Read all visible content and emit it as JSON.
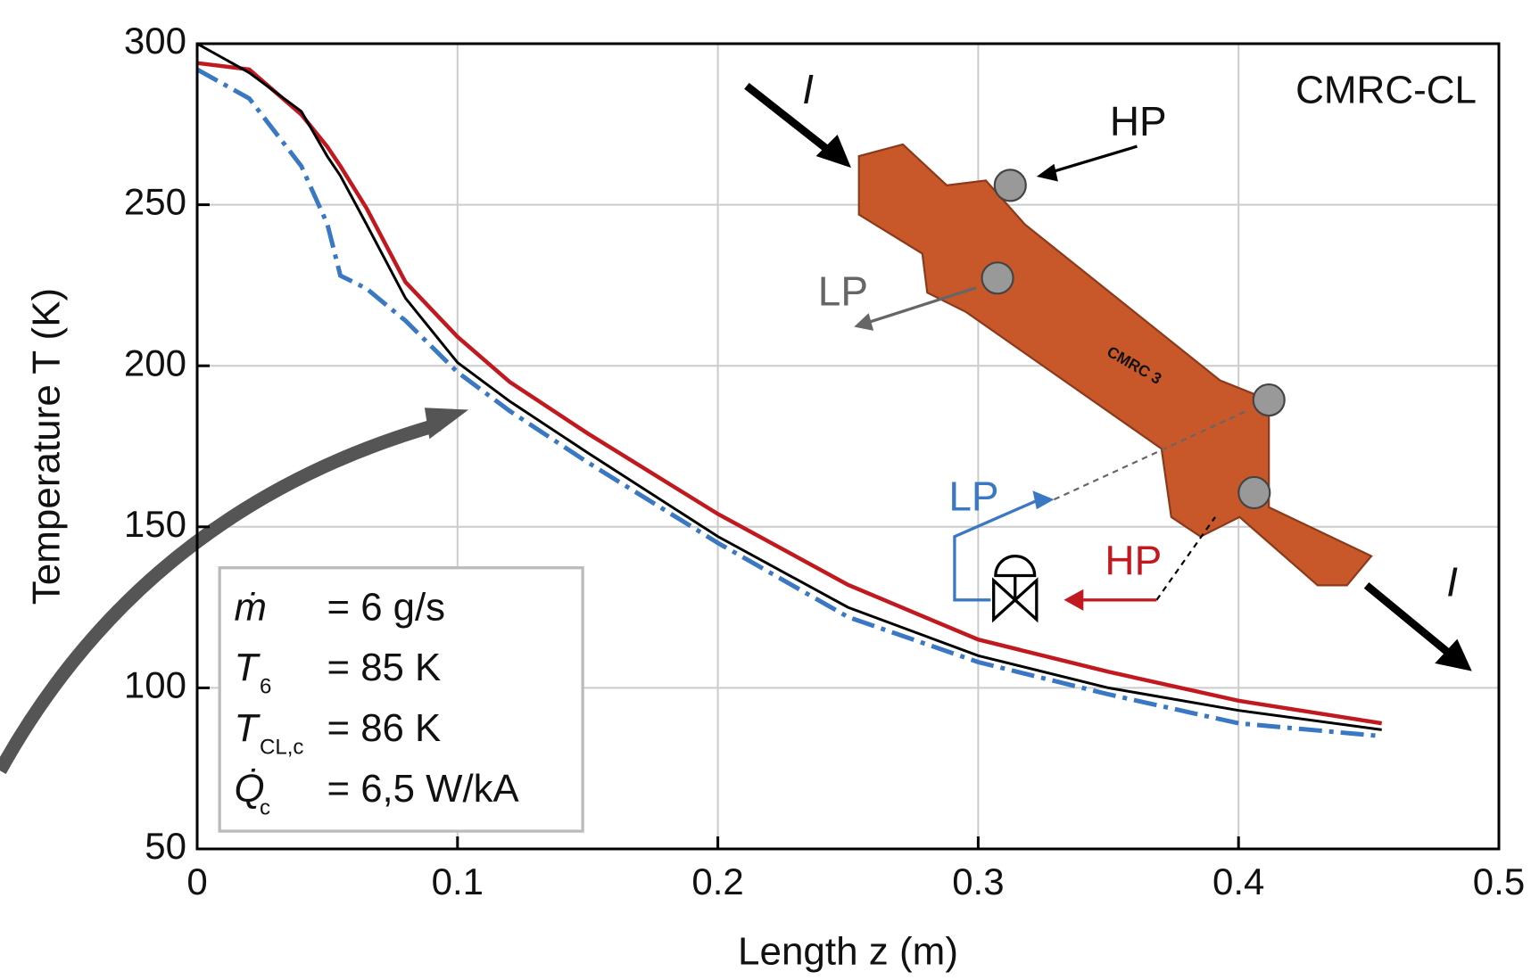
{
  "chart_data": {
    "type": "line",
    "xlabel": "Length z (m)",
    "ylabel": "Temperature T (K)",
    "annotation": "CMRC-CL",
    "x": [
      0,
      0.02,
      0.04,
      0.05,
      0.055,
      0.065,
      0.08,
      0.1,
      0.12,
      0.15,
      0.2,
      0.25,
      0.3,
      0.35,
      0.4,
      0.455
    ],
    "series": [
      {
        "color": "#c0191f",
        "style": "solid",
        "values": [
          294,
          292,
          278,
          268,
          262,
          249,
          226,
          209,
          195,
          179,
          154,
          132,
          115,
          105,
          96,
          89
        ]
      },
      {
        "color": "#000000",
        "style": "solid",
        "values": [
          300,
          291,
          279,
          265,
          259,
          244,
          221,
          201,
          189,
          173,
          147,
          125,
          110,
          100,
          93,
          87
        ]
      },
      {
        "color": "#3a78c3",
        "style": "dashdot",
        "values": [
          292,
          283,
          262,
          244,
          228,
          224,
          214,
          198,
          186,
          170,
          145,
          122,
          108,
          98,
          89,
          85
        ]
      }
    ],
    "xlim": [
      0,
      0.5
    ],
    "xticks": [
      0,
      0.1,
      0.2,
      0.3,
      0.4,
      0.5
    ],
    "ylim": [
      50,
      300
    ],
    "yticks": [
      50,
      100,
      150,
      200,
      250,
      300
    ],
    "grid": true,
    "parameter_box": [
      {
        "symbol": "ṁ",
        "value": "= 6 g/s"
      },
      {
        "symbol": "T",
        "subscript": "6",
        "value": "= 85 K"
      },
      {
        "symbol": "T",
        "subscript": "CL,c",
        "value": "= 86 K"
      },
      {
        "symbol": "Q̇",
        "subscript": "c",
        "value": "= 6,5 W/kA"
      }
    ],
    "diagram_labels": {
      "current_in": "I",
      "hp_top": "HP",
      "lp_top": "LP",
      "part_name": "CMRC 3",
      "lp_loop": "LP",
      "hp_loop": "HP",
      "current_out": "I"
    }
  }
}
